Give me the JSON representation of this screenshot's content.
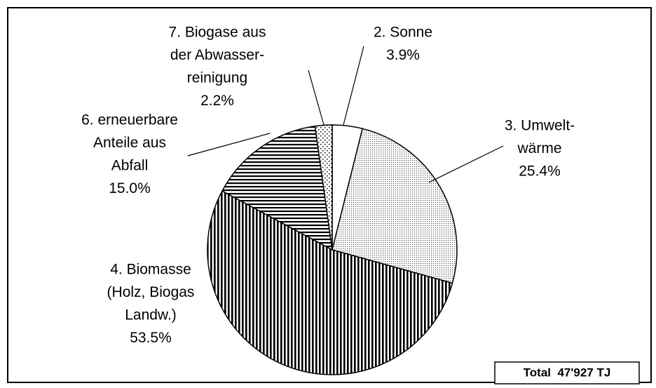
{
  "chart_data": {
    "type": "pie",
    "categories": [
      [
        "2. Sonne"
      ],
      [
        "3. Umwelt-",
        "wärme"
      ],
      [
        "4. Biomasse",
        "(Holz, Biogas",
        "Landw.)"
      ],
      [
        "6. erneuerbare",
        "Anteile aus",
        "Abfall"
      ],
      [
        "7. Biogase aus",
        "der Abwasser-",
        "reinigung"
      ]
    ],
    "values": [
      3.9,
      25.4,
      53.5,
      15.0,
      2.2
    ],
    "value_labels": [
      "3.9%",
      "25.4%",
      "53.5%",
      "15.0%",
      "2.2%"
    ],
    "annotation": "Total  47'927 TJ"
  }
}
